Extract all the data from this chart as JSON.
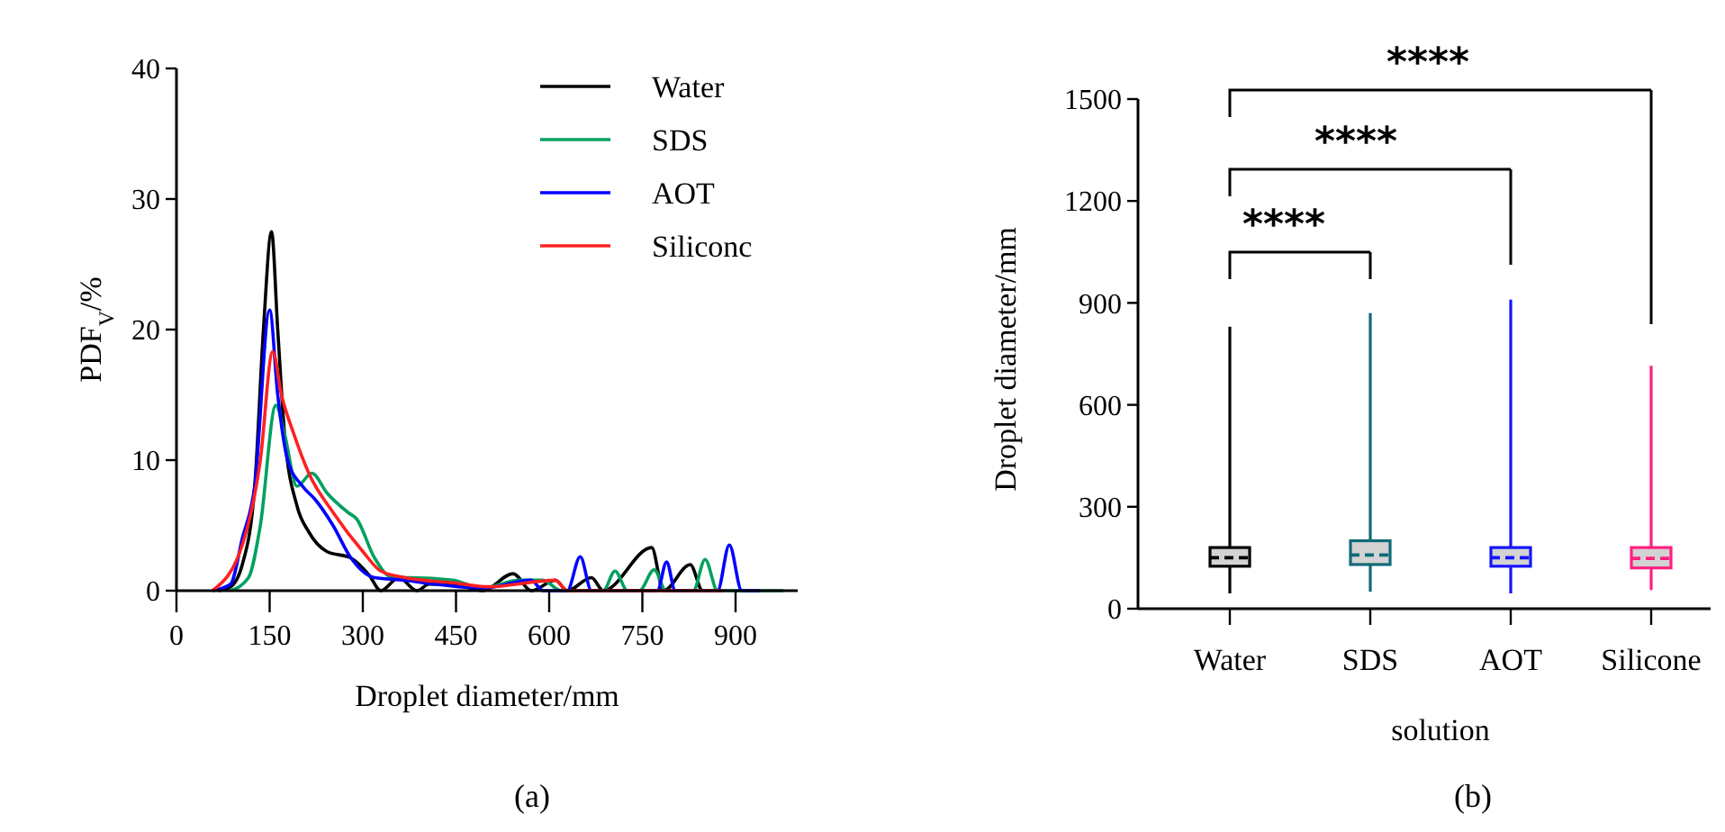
{
  "chart_data": [
    {
      "type": "line",
      "title": "(a)",
      "xlabel": "Droplet diameter/mm",
      "ylabel": "PDF$_{V}$/%",
      "xlim": [
        0,
        1000
      ],
      "xticks": [
        0,
        150,
        300,
        450,
        600,
        750,
        900
      ],
      "ylim": [
        0,
        40
      ],
      "yticks": [
        0,
        10,
        20,
        30,
        40
      ],
      "grid": false,
      "legend": "top right",
      "series": [
        {
          "name": "Water",
          "color": "#000000",
          "x": [
            67,
            87,
            106,
            126,
            140,
            153,
            163,
            174,
            194,
            213,
            242,
            281,
            310,
            329,
            358,
            387,
            407,
            455,
            493,
            542,
            571,
            610,
            629,
            668,
            687,
            765,
            784,
            827,
            847,
            881
          ],
          "values": [
            0,
            0.3,
            2,
            8,
            20,
            27.5,
            20,
            12,
            6.5,
            4.5,
            3,
            2.5,
            1.2,
            0,
            1,
            0,
            0.5,
            0.4,
            0,
            1.3,
            0,
            0.8,
            0,
            1,
            0,
            3.3,
            0,
            2,
            0,
            0
          ]
        },
        {
          "name": "SDS",
          "color": "#00a060",
          "x": [
            87,
            116,
            135,
            160,
            174,
            194,
            218,
            242,
            276,
            290,
            319,
            348,
            377,
            445,
            493,
            552,
            590,
            619,
            687,
            706,
            726,
            745,
            769,
            788,
            832,
            851,
            871,
            977
          ],
          "values": [
            0,
            1,
            5,
            14.2,
            12,
            8,
            9,
            7.5,
            6,
            5.5,
            2.5,
            1,
            1,
            0.8,
            0.2,
            0.8,
            0.8,
            0,
            0,
            1.5,
            0,
            0,
            1.6,
            0,
            0,
            2.4,
            0,
            0
          ]
        },
        {
          "name": "AOT",
          "color": "#0000ff",
          "x": [
            58,
            87,
            106,
            126,
            150,
            163,
            179,
            203,
            223,
            252,
            281,
            319,
            368,
            416,
            493,
            571,
            590,
            629,
            650,
            668,
            774,
            789,
            803,
            871,
            890,
            910,
            939
          ],
          "values": [
            0,
            0.5,
            4,
            8,
            21.5,
            15,
            10,
            8,
            7,
            5,
            2.5,
            1,
            0.8,
            0.5,
            0.2,
            0.8,
            0,
            0,
            2.6,
            0,
            0,
            2.2,
            0,
            0,
            3.5,
            0,
            0
          ]
        },
        {
          "name": "Siliconc",
          "color": "#ff2020",
          "x": [
            58,
            106,
            135,
            155,
            169,
            189,
            213,
            252,
            300,
            329,
            368,
            445,
            503,
            610,
            629,
            784,
            881
          ],
          "values": [
            0,
            3.5,
            10,
            18.3,
            15,
            12,
            9,
            6,
            3,
            1.5,
            1,
            0.6,
            0.3,
            0.8,
            0,
            0,
            0
          ]
        }
      ]
    },
    {
      "type": "box",
      "title": "(b)",
      "xlabel": "solution",
      "ylabel": "Droplet diameter/mm",
      "categories": [
        "Water",
        "SDS",
        "AOT",
        "Silicone"
      ],
      "ylim": [
        0,
        1500
      ],
      "yticks": [
        0,
        300,
        600,
        900,
        1200,
        1500
      ],
      "grid": false,
      "colors": [
        "#000000",
        "#106a78",
        "#1414ff",
        "#ff1f80"
      ],
      "boxes": [
        {
          "low": 45,
          "q1": 125,
          "median": 150,
          "q3": 180,
          "high": 830
        },
        {
          "low": 50,
          "q1": 130,
          "median": 158,
          "q3": 200,
          "high": 870
        },
        {
          "low": 45,
          "q1": 125,
          "median": 150,
          "q3": 180,
          "high": 910
        },
        {
          "low": 55,
          "q1": 120,
          "median": 148,
          "q3": 180,
          "high": 715
        }
      ],
      "annotations": [
        "****",
        "****",
        "****"
      ]
    }
  ]
}
